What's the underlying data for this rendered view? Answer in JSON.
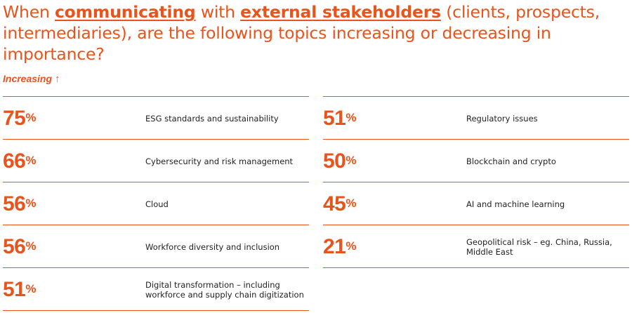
{
  "title": {
    "part1": "When ",
    "hl1": "communicating",
    "part2": " with ",
    "hl2": "external stakeholders",
    "part3": " (clients, prospects, intermediaries), are the following topics increasing or decreasing in importance?"
  },
  "subhead": {
    "label": "Increasing",
    "arrow": "↑"
  },
  "colors": {
    "accent": "#e8541c",
    "text": "#222222"
  },
  "chart_data": {
    "type": "table",
    "title": "When communicating with external stakeholders (clients, prospects, intermediaries), are the following topics increasing or decreasing in importance?",
    "series_label": "Increasing",
    "unit": "%",
    "left_column": [
      {
        "value": 75,
        "topic": "ESG standards and sustainability"
      },
      {
        "value": 66,
        "topic": "Cybersecurity and risk management"
      },
      {
        "value": 56,
        "topic": "Cloud"
      },
      {
        "value": 56,
        "topic": "Workforce diversity and inclusion"
      },
      {
        "value": 51,
        "topic": "Digital transformation – including workforce and supply chain digitization"
      }
    ],
    "right_column": [
      {
        "value": 51,
        "topic": "Regulatory issues"
      },
      {
        "value": 50,
        "topic": "Blockchain and crypto"
      },
      {
        "value": 45,
        "topic": "AI and machine learning"
      },
      {
        "value": 21,
        "topic": "Geopolitical risk – eg. China, Russia, Middle East"
      }
    ]
  }
}
